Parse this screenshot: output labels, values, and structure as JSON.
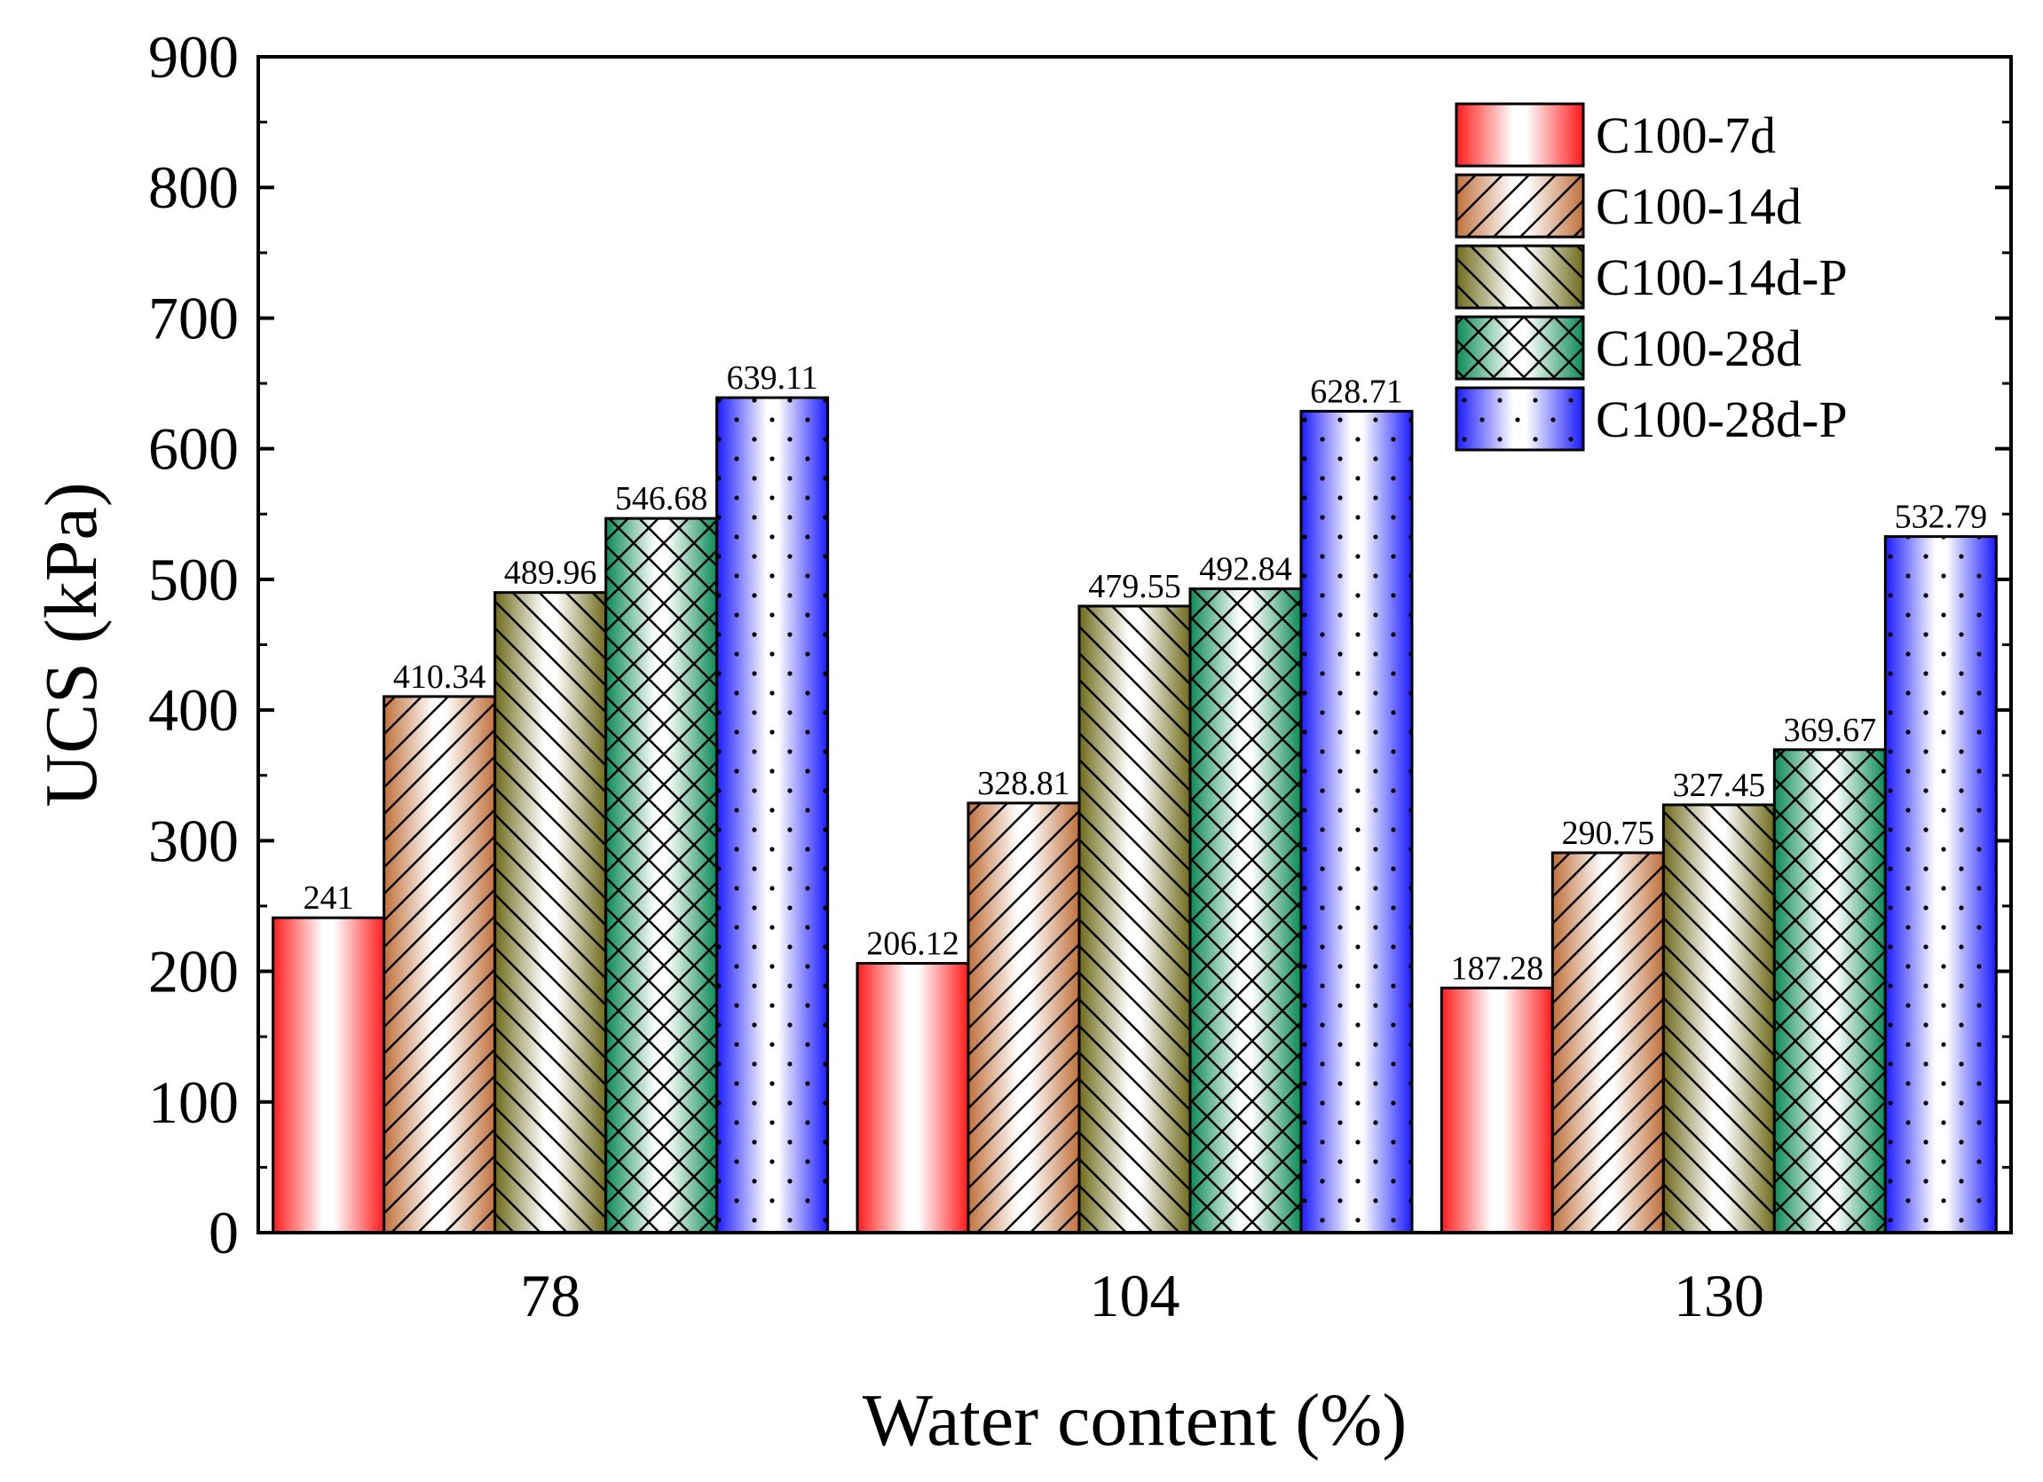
{
  "chart_data": {
    "type": "bar",
    "title": "",
    "xlabel": "Water content (%)",
    "ylabel": "UCS (kPa)",
    "ylim": [
      0,
      900
    ],
    "yticks": [
      0,
      100,
      200,
      300,
      400,
      500,
      600,
      700,
      800,
      900
    ],
    "categories": [
      "78",
      "104",
      "130"
    ],
    "legend_position": "top-right",
    "grid": false,
    "series": [
      {
        "name": "C100-7d",
        "pattern": "none",
        "color": "#ff1a1a",
        "values": [
          241,
          206.12,
          187.28
        ],
        "labels": [
          "241",
          "206.12",
          "187.28"
        ]
      },
      {
        "name": "C100-14d",
        "pattern": "diagonal-forward",
        "color": "#c0703a",
        "values": [
          410.34,
          328.81,
          290.75
        ],
        "labels": [
          "410.34",
          "328.81",
          "290.75"
        ]
      },
      {
        "name": "C100-14d-P",
        "pattern": "diagonal-backward",
        "color": "#6e6a1a",
        "values": [
          489.96,
          479.55,
          327.45
        ],
        "labels": [
          "489.96",
          "479.55",
          "327.45"
        ]
      },
      {
        "name": "C100-28d",
        "pattern": "crosshatch",
        "color": "#0a8a55",
        "values": [
          546.68,
          492.84,
          369.67
        ],
        "labels": [
          "546.68",
          "492.84",
          "369.67"
        ]
      },
      {
        "name": "C100-28d-P",
        "pattern": "dots",
        "color": "#1a1aff",
        "values": [
          639.11,
          628.71,
          532.79
        ],
        "labels": [
          "639.11",
          "628.71",
          "532.79"
        ]
      }
    ]
  }
}
